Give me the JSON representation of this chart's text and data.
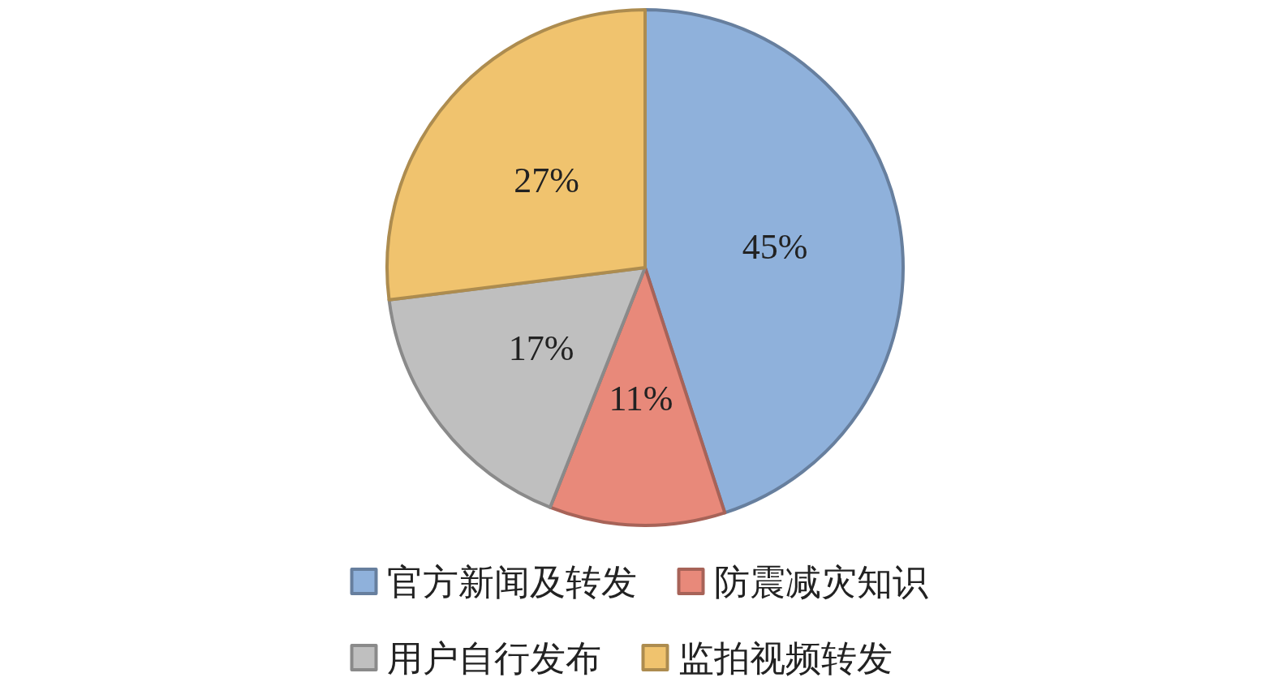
{
  "chart_data": {
    "type": "pie",
    "categories": [
      "官方新闻及转发",
      "防震减灾知识",
      "用户自行发布",
      "监拍视频转发"
    ],
    "values": [
      45,
      11,
      17,
      27
    ],
    "colors": [
      "#8fb1db",
      "#e8897a",
      "#bfbfbf",
      "#f0c36e"
    ],
    "value_labels": [
      "45%",
      "11%",
      "17%",
      "27%"
    ],
    "legend": "bottom"
  }
}
